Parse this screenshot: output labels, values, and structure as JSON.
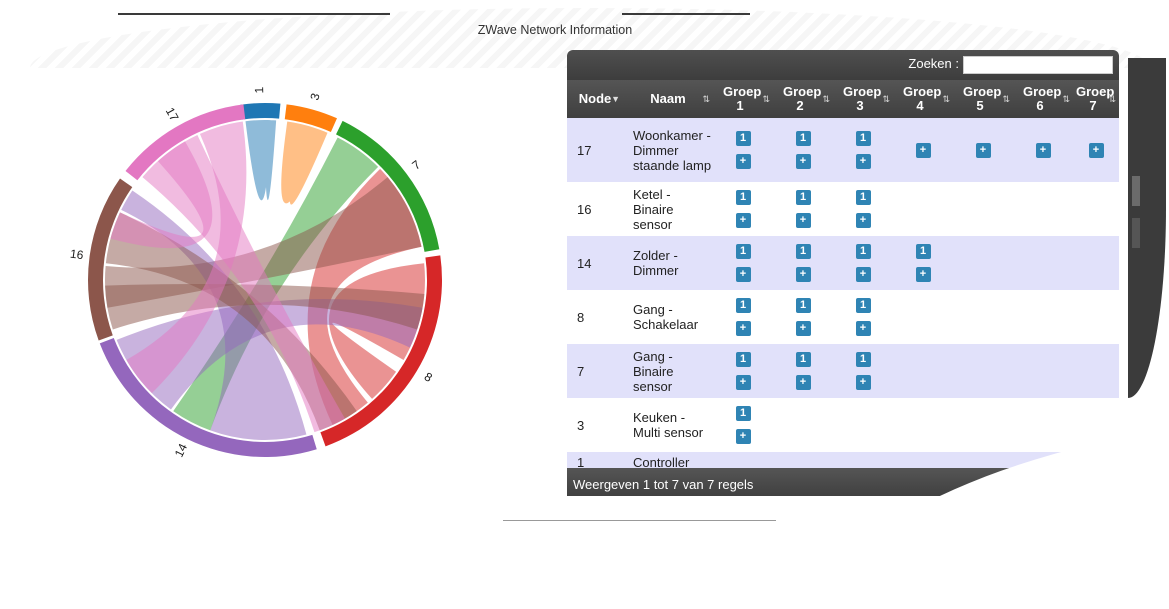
{
  "title": "ZWave Network Information",
  "chord": {
    "groups": [
      {
        "label": "1",
        "color": "#1f77b4"
      },
      {
        "label": "3",
        "color": "#ff7f0e"
      },
      {
        "label": "7",
        "color": "#2ca02c"
      },
      {
        "label": "8",
        "color": "#d62728"
      },
      {
        "label": "14",
        "color": "#9467bd"
      },
      {
        "label": "16",
        "color": "#8c564b"
      },
      {
        "label": "17",
        "color": "#e377c2"
      }
    ]
  },
  "search": {
    "label": "Zoeken :",
    "value": ""
  },
  "table": {
    "headers": [
      "Node",
      "Naam",
      "Groep 1",
      "Groep 2",
      "Groep 3",
      "Groep 4",
      "Groep 5",
      "Groep 6",
      "Groep 7"
    ],
    "rows": [
      {
        "node": "17",
        "name": "Woonkamer - Dimmer staande lamp",
        "groups": [
          [
            "1",
            "+"
          ],
          [
            "1",
            "+"
          ],
          [
            "1",
            "+"
          ],
          [
            "+"
          ],
          [
            "+"
          ],
          [
            "+"
          ],
          [
            "+"
          ]
        ]
      },
      {
        "node": "16",
        "name": "Ketel - Binaire sensor",
        "groups": [
          [
            "1",
            "+"
          ],
          [
            "1",
            "+"
          ],
          [
            "1",
            "+"
          ],
          [],
          [],
          [],
          []
        ]
      },
      {
        "node": "14",
        "name": "Zolder - Dimmer",
        "groups": [
          [
            "1",
            "+"
          ],
          [
            "1",
            "+"
          ],
          [
            "1",
            "+"
          ],
          [
            "1",
            "+"
          ],
          [],
          [],
          []
        ]
      },
      {
        "node": "8",
        "name": "Gang - Schakelaar",
        "groups": [
          [
            "1",
            "+"
          ],
          [
            "1",
            "+"
          ],
          [
            "1",
            "+"
          ],
          [],
          [],
          [],
          []
        ]
      },
      {
        "node": "7",
        "name": "Gang - Binaire sensor",
        "groups": [
          [
            "1",
            "+"
          ],
          [
            "1",
            "+"
          ],
          [
            "1",
            "+"
          ],
          [],
          [],
          [],
          []
        ]
      },
      {
        "node": "3",
        "name": "Keuken - Multi sensor",
        "groups": [
          [
            "1",
            "+"
          ],
          [],
          [],
          [],
          [],
          [],
          []
        ]
      },
      {
        "node": "1",
        "name": "Controller",
        "groups": [
          [],
          [],
          [],
          [],
          [],
          [],
          []
        ]
      }
    ],
    "footer": "Weergeven 1 tot 7 van 7 regels"
  }
}
